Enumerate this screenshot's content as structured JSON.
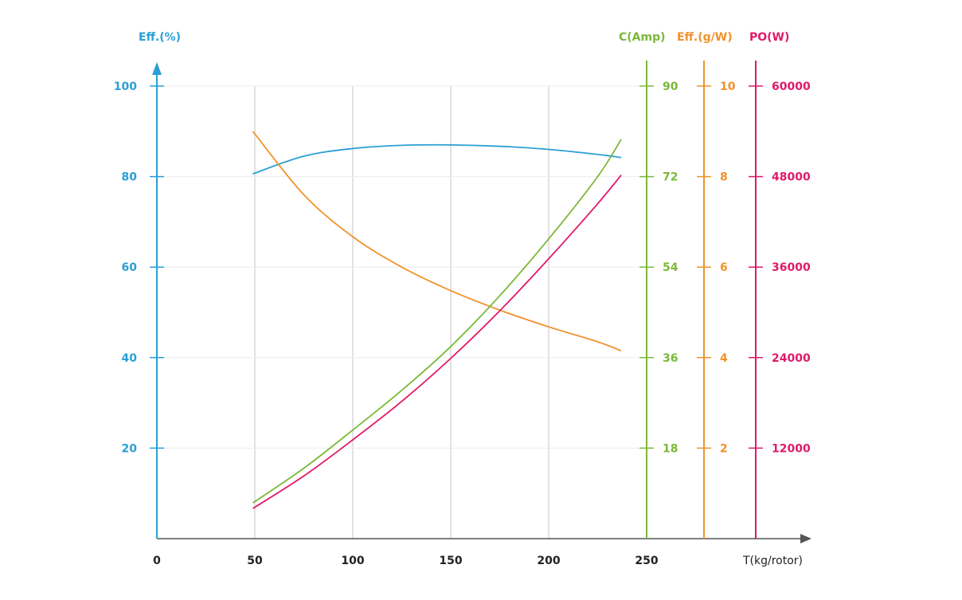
{
  "chart_data": {
    "type": "line",
    "xlabel": "T(kg/rotor)",
    "x_ticks": [
      0,
      50,
      100,
      150,
      200,
      250
    ],
    "xlim": [
      0,
      250
    ],
    "grid": true,
    "axes": [
      {
        "id": "eff_pct",
        "label": "Eff.(%)",
        "side": "left",
        "ticks": [
          20,
          40,
          60,
          80,
          100
        ],
        "ylim": [
          0,
          100
        ],
        "color": "#2a9fd6"
      },
      {
        "id": "current",
        "label": "C(Amp)",
        "side": "right",
        "ticks": [
          18,
          36,
          54,
          72,
          90
        ],
        "ylim": [
          0,
          90
        ],
        "color": "#7cb83a"
      },
      {
        "id": "eff_gw",
        "label": "Eff.(g/W)",
        "side": "right",
        "ticks": [
          2,
          4,
          6,
          8,
          10
        ],
        "ylim": [
          0,
          10
        ],
        "color": "#f0922b"
      },
      {
        "id": "power",
        "label": "PO(W)",
        "side": "right",
        "ticks": [
          12000,
          24000,
          36000,
          48000,
          60000
        ],
        "ylim": [
          0,
          60000
        ],
        "color": "#e0196b"
      }
    ],
    "x": [
      49,
      75,
      100,
      125,
      150,
      175,
      200,
      225,
      237
    ],
    "series": [
      {
        "axis": "eff_pct",
        "color": "#2a9fd6",
        "values": [
          80.6,
          84.5,
          86.2,
          86.9,
          87.0,
          86.7,
          86.0,
          84.9,
          84.2
        ]
      },
      {
        "axis": "eff_gw",
        "color": "#f0922b",
        "values": [
          9.0,
          7.6,
          6.67,
          6.0,
          5.48,
          5.05,
          4.68,
          4.35,
          4.15
        ]
      },
      {
        "axis": "current",
        "color": "#7cb83a",
        "values": [
          7.1,
          14,
          21.6,
          29.5,
          38.2,
          48.3,
          59.6,
          72,
          79.4
        ]
      },
      {
        "axis": "power",
        "color": "#e0196b",
        "values": [
          4000,
          8300,
          13100,
          18200,
          23900,
          30200,
          37100,
          44400,
          48200
        ]
      }
    ]
  }
}
